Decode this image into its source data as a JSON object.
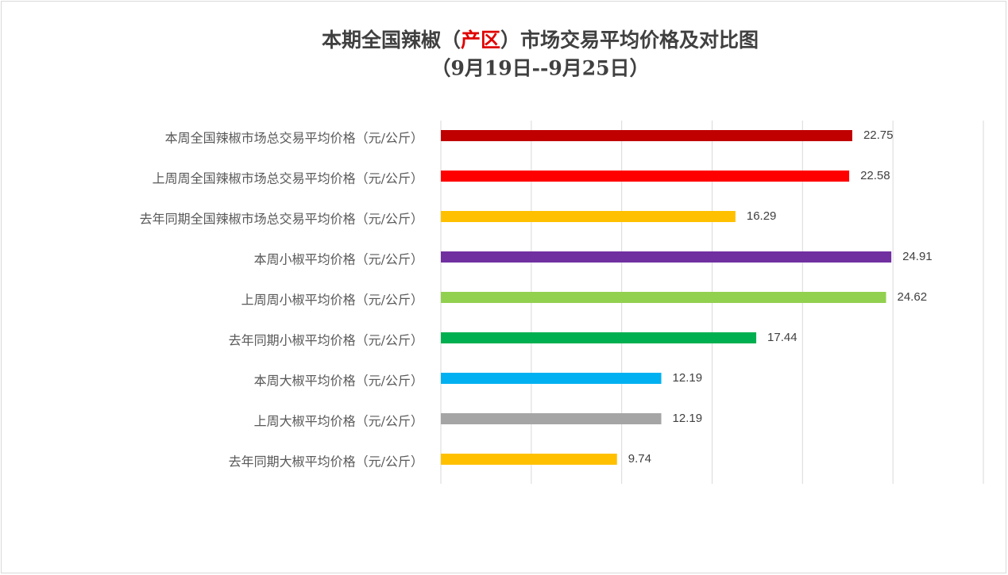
{
  "chart_data": {
    "type": "bar",
    "orientation": "horizontal",
    "title": [
      {
        "text": "本期全国辣椒（",
        "color": "#404040"
      },
      {
        "text": "产区",
        "color": "#e00000"
      },
      {
        "text": "）市场交易平均价格及对比图",
        "color": "#404040"
      }
    ],
    "subtitle": "（9月19日--9月25日）",
    "categories": [
      "本周全国辣椒市场总交易平均价格（元/公斤）",
      "上周周全国辣椒市场总交易平均价格（元/公斤）",
      "去年同期全国辣椒市场总交易平均价格（元/公斤）",
      "本周小椒平均价格（元/公斤）",
      "上周周小椒平均价格（元/公斤）",
      "去年同期小椒平均价格（元/公斤）",
      "本周大椒平均价格（元/公斤）",
      "上周大椒平均价格（元/公斤）",
      "去年同期大椒平均价格（元/公斤）"
    ],
    "values": [
      22.75,
      22.58,
      16.29,
      24.91,
      24.62,
      17.44,
      12.19,
      12.19,
      9.74
    ],
    "colors": [
      "#c00000",
      "#ff0000",
      "#ffc000",
      "#7030a0",
      "#92d050",
      "#00b050",
      "#00b0f0",
      "#a5a5a5",
      "#ffc000"
    ],
    "xlim": [
      0,
      30
    ],
    "xticks": [
      0,
      5,
      10,
      15,
      20,
      25,
      30
    ],
    "grid": true
  }
}
